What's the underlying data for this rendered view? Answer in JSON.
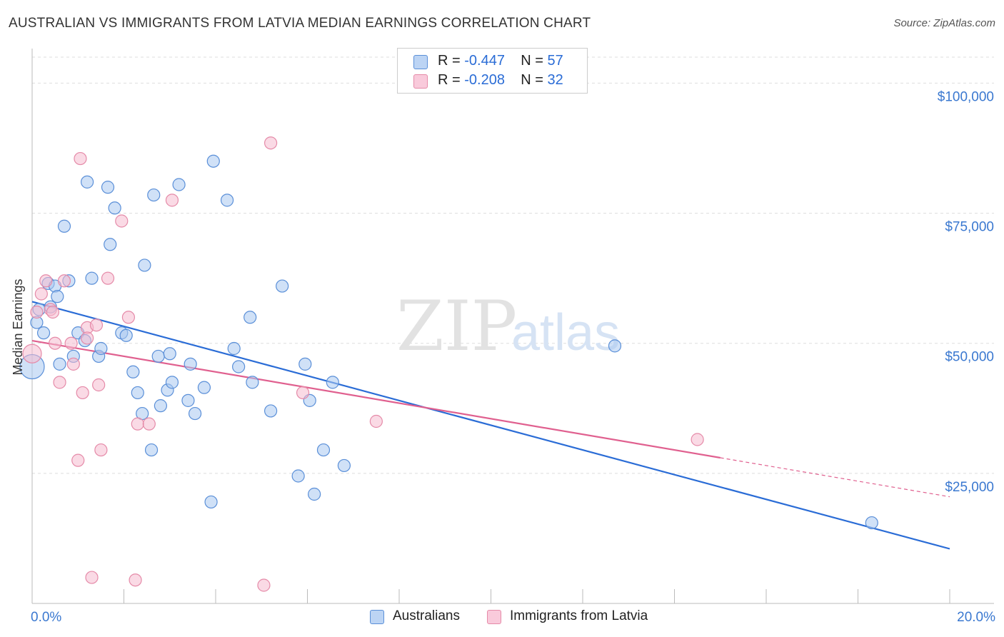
{
  "title": "AUSTRALIAN VS IMMIGRANTS FROM LATVIA MEDIAN EARNINGS CORRELATION CHART",
  "source": "Source: ZipAtlas.com",
  "watermark": {
    "zip": "ZIP",
    "atlas": "atlas"
  },
  "legend": {
    "rows": [
      {
        "r_label": "R =",
        "r_value": "-0.447",
        "n_label": "N =",
        "n_value": "57"
      },
      {
        "r_label": "R =",
        "r_value": "-0.208",
        "n_label": "N =",
        "n_value": "32"
      }
    ]
  },
  "bottom_legend": [
    "Australians",
    "Immigrants from Latvia"
  ],
  "colors": {
    "blue_fill": "#aac8f0",
    "blue_stroke": "#5a8fd8",
    "blue_line": "#2a6cd6",
    "pink_fill": "#f6bcd0",
    "pink_stroke": "#e58aa8",
    "pink_line": "#e0608f",
    "tick_label": "#3a78d0",
    "grid": "#dddddd"
  },
  "chart_data": {
    "type": "scatter",
    "title": "AUSTRALIAN VS IMMIGRANTS FROM LATVIA MEDIAN EARNINGS CORRELATION CHART",
    "xlabel": "",
    "ylabel": "Median Earnings",
    "xlim": [
      0,
      20
    ],
    "ylim": [
      0,
      105000
    ],
    "x_tick_labels": [
      "0.0%",
      "20.0%"
    ],
    "y_ticks": [
      {
        "value": 25000,
        "label": "$25,000"
      },
      {
        "value": 50000,
        "label": "$50,000"
      },
      {
        "value": 75000,
        "label": "$75,000"
      },
      {
        "value": 100000,
        "label": "$100,000"
      }
    ],
    "grid": true,
    "series": [
      {
        "name": "Australians",
        "color": "blue",
        "R": -0.447,
        "N": 57,
        "trend": {
          "x0": 0.0,
          "y0": 58000,
          "x1": 20.0,
          "y1": 10500,
          "dashed_from": null
        },
        "points": [
          [
            0.0,
            45500
          ],
          [
            0.1,
            54000
          ],
          [
            0.25,
            52000
          ],
          [
            0.35,
            61500
          ],
          [
            0.4,
            57000
          ],
          [
            0.5,
            61000
          ],
          [
            0.55,
            59000
          ],
          [
            0.6,
            46000
          ],
          [
            0.7,
            72500
          ],
          [
            0.8,
            62000
          ],
          [
            0.9,
            47500
          ],
          [
            1.0,
            52000
          ],
          [
            1.15,
            50500
          ],
          [
            1.2,
            81000
          ],
          [
            1.3,
            62500
          ],
          [
            1.45,
            47500
          ],
          [
            1.5,
            49000
          ],
          [
            1.65,
            80000
          ],
          [
            1.7,
            69000
          ],
          [
            1.8,
            76000
          ],
          [
            1.95,
            52000
          ],
          [
            2.05,
            51500
          ],
          [
            2.2,
            44500
          ],
          [
            2.3,
            40500
          ],
          [
            2.4,
            36500
          ],
          [
            2.45,
            65000
          ],
          [
            2.6,
            29500
          ],
          [
            2.65,
            78500
          ],
          [
            2.75,
            47500
          ],
          [
            2.8,
            38000
          ],
          [
            2.95,
            41000
          ],
          [
            3.0,
            48000
          ],
          [
            3.05,
            42500
          ],
          [
            3.2,
            80500
          ],
          [
            3.4,
            39000
          ],
          [
            3.45,
            46000
          ],
          [
            3.55,
            36500
          ],
          [
            3.75,
            41500
          ],
          [
            3.9,
            19500
          ],
          [
            3.95,
            85000
          ],
          [
            4.25,
            77500
          ],
          [
            4.4,
            49000
          ],
          [
            4.5,
            45500
          ],
          [
            4.75,
            55000
          ],
          [
            4.8,
            42500
          ],
          [
            5.2,
            37000
          ],
          [
            5.45,
            61000
          ],
          [
            5.8,
            24500
          ],
          [
            5.95,
            46000
          ],
          [
            6.05,
            39000
          ],
          [
            6.15,
            21000
          ],
          [
            6.35,
            29500
          ],
          [
            6.55,
            42500
          ],
          [
            6.8,
            26500
          ],
          [
            12.7,
            49500
          ],
          [
            18.3,
            15500
          ],
          [
            0.15,
            56500
          ]
        ]
      },
      {
        "name": "Immigrants from Latvia",
        "color": "pink",
        "R": -0.208,
        "N": 32,
        "trend": {
          "x0": 0.0,
          "y0": 50500,
          "x1": 20.0,
          "y1": 20500,
          "dashed_from": 15.0
        },
        "points": [
          [
            0.0,
            48000
          ],
          [
            0.1,
            56000
          ],
          [
            0.2,
            59500
          ],
          [
            0.3,
            62000
          ],
          [
            0.4,
            56500
          ],
          [
            0.45,
            56000
          ],
          [
            0.5,
            50000
          ],
          [
            0.6,
            42500
          ],
          [
            0.7,
            62000
          ],
          [
            0.85,
            50000
          ],
          [
            0.9,
            46000
          ],
          [
            1.0,
            27500
          ],
          [
            1.05,
            85500
          ],
          [
            1.1,
            40500
          ],
          [
            1.2,
            53000
          ],
          [
            1.3,
            5000
          ],
          [
            1.4,
            53500
          ],
          [
            1.45,
            42000
          ],
          [
            1.5,
            29500
          ],
          [
            1.65,
            62500
          ],
          [
            1.95,
            73500
          ],
          [
            2.1,
            55000
          ],
          [
            2.3,
            34500
          ],
          [
            2.25,
            4500
          ],
          [
            2.55,
            34500
          ],
          [
            3.05,
            77500
          ],
          [
            5.05,
            3500
          ],
          [
            5.2,
            88500
          ],
          [
            5.9,
            40500
          ],
          [
            7.5,
            35000
          ],
          [
            14.5,
            31500
          ],
          [
            1.2,
            51000
          ]
        ]
      }
    ]
  }
}
